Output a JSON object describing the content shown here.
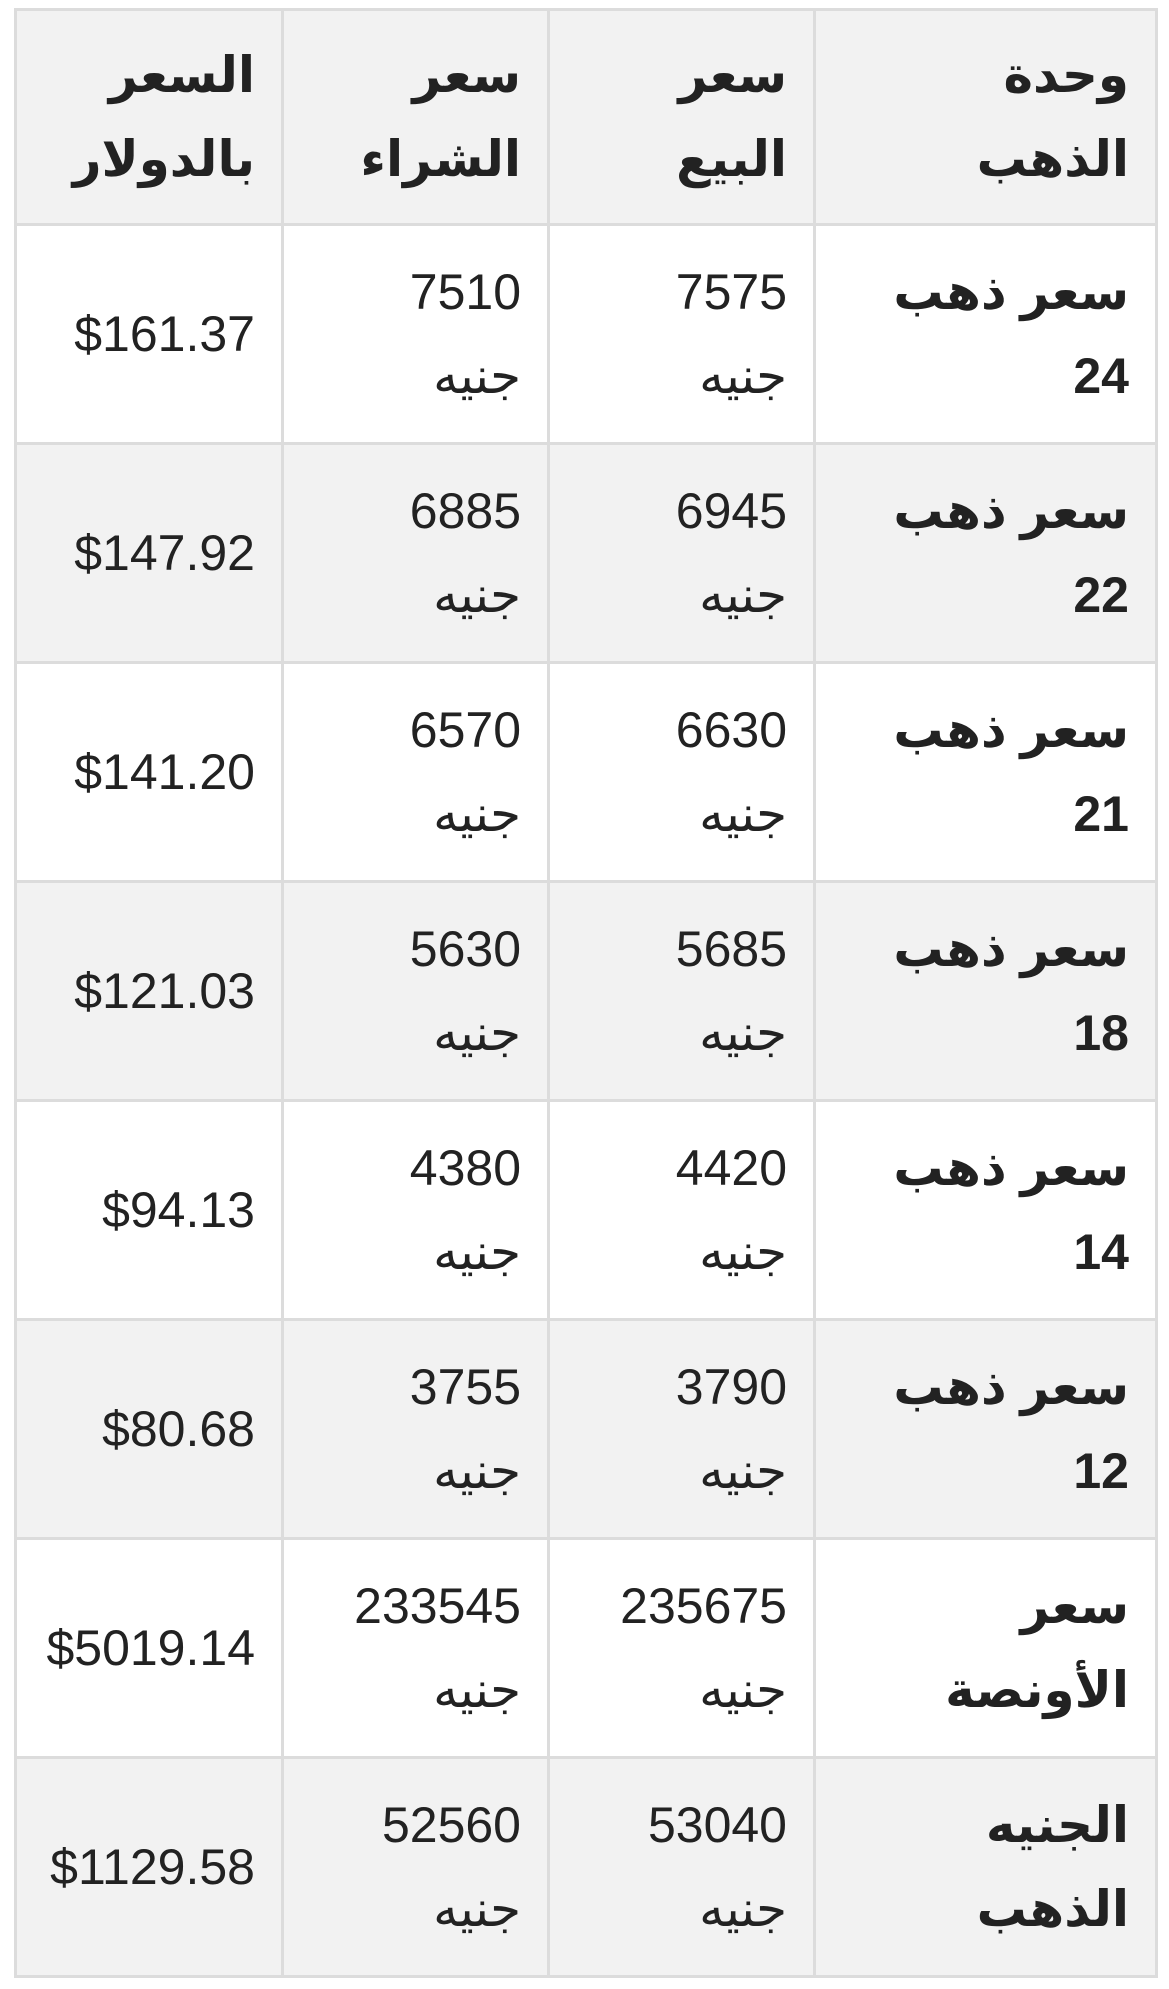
{
  "headers": [
    "وحدة الذهب",
    "سعر البيع",
    "سعر الشراء",
    "السعر بالدولار"
  ],
  "rows": [
    {
      "unit": "سعر ذهب 24",
      "sell": "7575 جنيه",
      "buy": "7510 جنيه",
      "usd": "$161.37"
    },
    {
      "unit": "سعر ذهب 22",
      "sell": "6945 جنيه",
      "buy": "6885 جنيه",
      "usd": "$147.92"
    },
    {
      "unit": "سعر ذهب 21",
      "sell": "6630 جنيه",
      "buy": "6570 جنيه",
      "usd": "$141.20"
    },
    {
      "unit": "سعر ذهب 18",
      "sell": "5685 جنيه",
      "buy": "5630 جنيه",
      "usd": "$121.03"
    },
    {
      "unit": "سعر ذهب 14",
      "sell": "4420 جنيه",
      "buy": "4380 جنيه",
      "usd": "$94.13"
    },
    {
      "unit": "سعر ذهب 12",
      "sell": "3790 جنيه",
      "buy": "3755 جنيه",
      "usd": "$80.68"
    },
    {
      "unit": "سعر الأونصة",
      "sell": "235675 جنيه",
      "buy": "233545 جنيه",
      "usd": "$5019.14"
    },
    {
      "unit": "الجنيه الذهب",
      "sell": "53040 جنيه",
      "buy": "52560 جنيه",
      "usd": "$1129.58"
    }
  ]
}
